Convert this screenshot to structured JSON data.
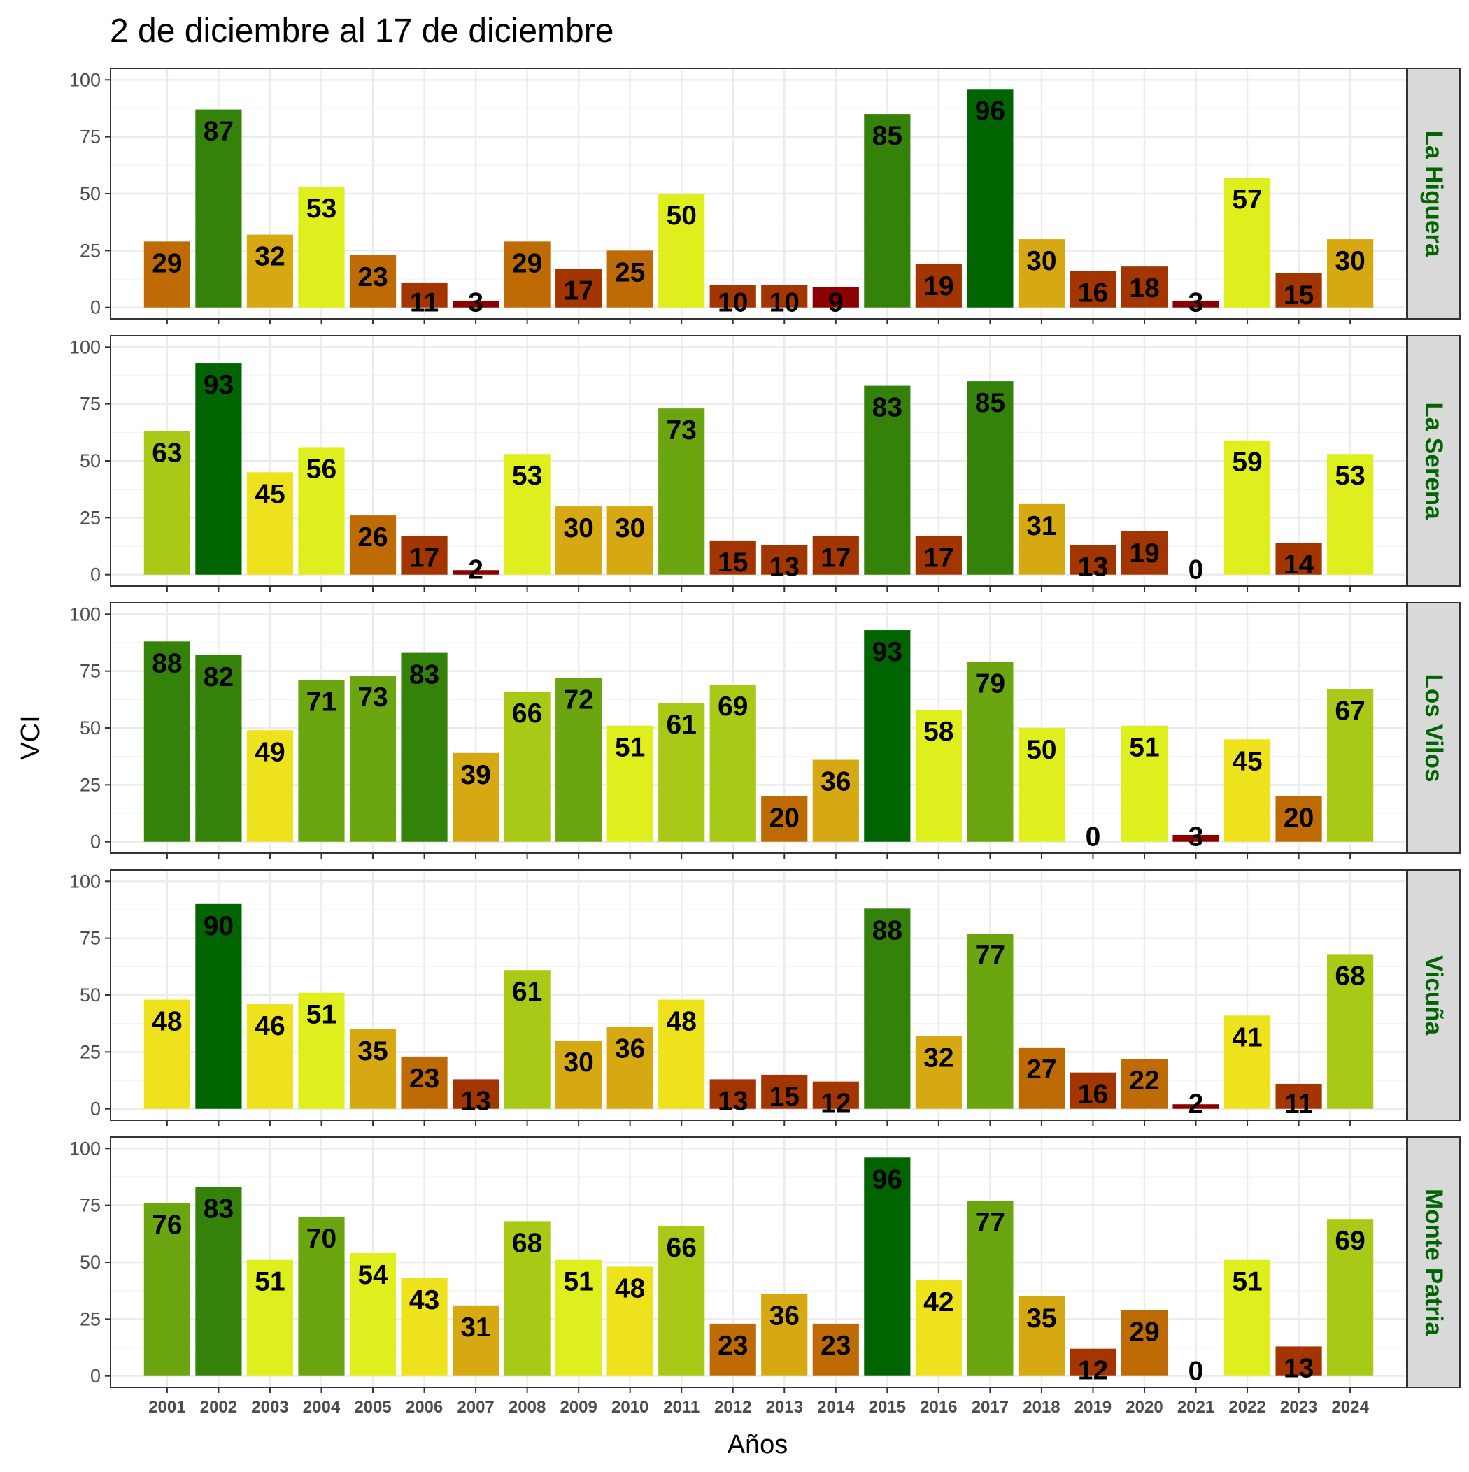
{
  "chart_data": {
    "type": "bar",
    "title": "2 de diciembre al 17 de diciembre",
    "xlabel": "Años",
    "ylabel": "VCI",
    "ylim": [
      0,
      100
    ],
    "yticks": [
      "0",
      "25",
      "50",
      "75",
      "100"
    ],
    "grid": true,
    "strip_color": "#006400",
    "categories": [
      "2001",
      "2002",
      "2003",
      "2004",
      "2005",
      "2006",
      "2007",
      "2008",
      "2009",
      "2010",
      "2011",
      "2012",
      "2013",
      "2014",
      "2015",
      "2016",
      "2017",
      "2018",
      "2019",
      "2020",
      "2021",
      "2022",
      "2023",
      "2024"
    ],
    "panels": [
      {
        "name": "La Higuera",
        "values": [
          29,
          87,
          32,
          53,
          23,
          11,
          3,
          29,
          17,
          25,
          50,
          10,
          10,
          9,
          85,
          19,
          96,
          30,
          16,
          18,
          3,
          57,
          15,
          30
        ]
      },
      {
        "name": "La Serena",
        "values": [
          63,
          93,
          45,
          56,
          26,
          17,
          2,
          53,
          30,
          30,
          73,
          15,
          13,
          17,
          83,
          17,
          85,
          31,
          13,
          19,
          0,
          59,
          14,
          53
        ]
      },
      {
        "name": "Los Vilos",
        "values": [
          88,
          82,
          49,
          71,
          73,
          83,
          39,
          66,
          72,
          51,
          61,
          69,
          20,
          36,
          93,
          58,
          79,
          50,
          0,
          51,
          3,
          45,
          20,
          67
        ]
      },
      {
        "name": "Vicuña",
        "values": [
          48,
          90,
          46,
          51,
          35,
          23,
          13,
          61,
          30,
          36,
          48,
          13,
          15,
          12,
          88,
          32,
          77,
          27,
          16,
          22,
          2,
          41,
          11,
          68
        ]
      },
      {
        "name": "Monte Patria",
        "values": [
          76,
          83,
          51,
          70,
          54,
          43,
          31,
          68,
          51,
          48,
          66,
          23,
          36,
          23,
          96,
          42,
          77,
          35,
          12,
          29,
          0,
          51,
          13,
          69
        ]
      }
    ],
    "color_scale": [
      {
        "max": 10,
        "color": "#8b0000"
      },
      {
        "max": 20,
        "color": "#a33500"
      },
      {
        "max": 30,
        "color": "#bf6b05"
      },
      {
        "max": 40,
        "color": "#d6a811"
      },
      {
        "max": 50,
        "color": "#ede21c"
      },
      {
        "max": 60,
        "color": "#dfee1d"
      },
      {
        "max": 70,
        "color": "#a8c916"
      },
      {
        "max": 80,
        "color": "#6ba50f"
      },
      {
        "max": 90,
        "color": "#34820a"
      },
      {
        "max": 101,
        "color": "#006400"
      }
    ]
  }
}
